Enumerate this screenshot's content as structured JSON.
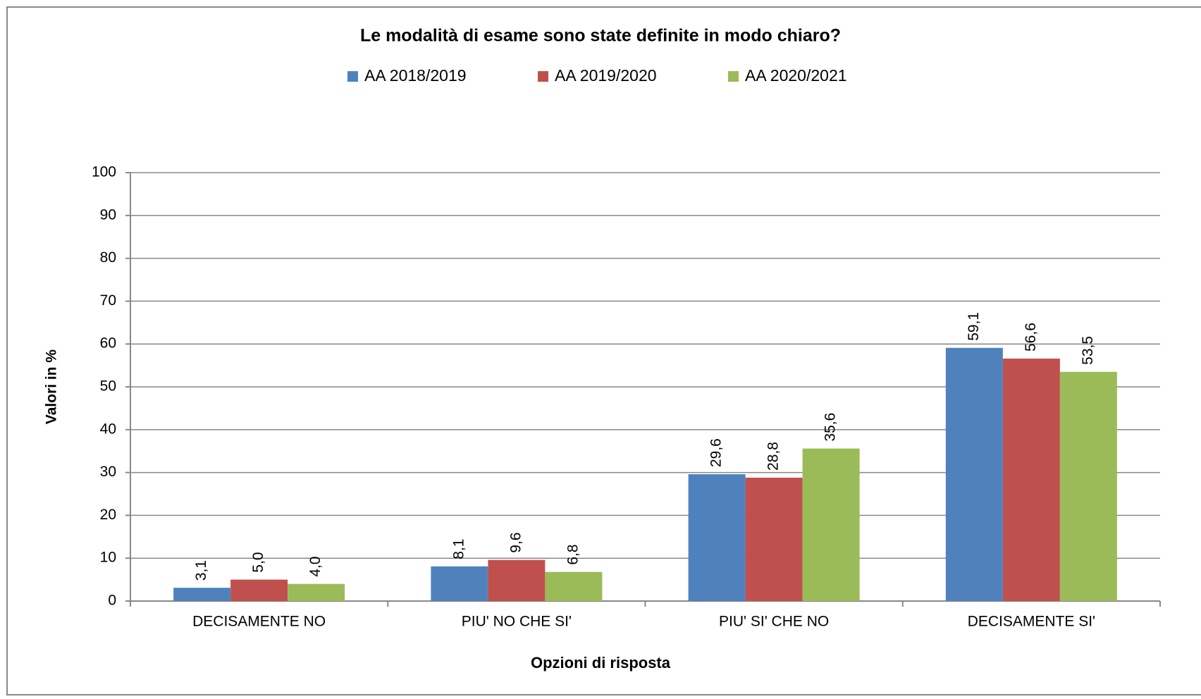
{
  "chart_data": {
    "type": "bar",
    "title": "Le modalità di esame sono state definite in modo chiaro?",
    "x_label": "Opzioni di risposta",
    "y_label": "Valori in %",
    "categories": [
      "DECISAMENTE NO",
      "PIU' NO CHE SI'",
      "PIU' SI' CHE NO",
      "DECISAMENTE SI'"
    ],
    "series": [
      {
        "name": "AA 2018/2019",
        "color": "#4f81bd",
        "values": [
          3.1,
          8.1,
          29.6,
          59.1
        ],
        "value_labels": [
          "3,1",
          "8,1",
          "29,6",
          "59,1"
        ]
      },
      {
        "name": "AA 2019/2020",
        "color": "#c0504d",
        "values": [
          5.0,
          9.6,
          28.8,
          56.6
        ],
        "value_labels": [
          "5,0",
          "9,6",
          "28,8",
          "56,6"
        ]
      },
      {
        "name": "AA 2020/2021",
        "color": "#9bbb59",
        "values": [
          4.0,
          6.8,
          35.6,
          53.5
        ],
        "value_labels": [
          "4,0",
          "6,8",
          "35,6",
          "53,5"
        ]
      }
    ],
    "ylim": [
      0,
      100
    ],
    "yticks": [
      0,
      10,
      20,
      30,
      40,
      50,
      60,
      70,
      80,
      90,
      100
    ],
    "grid": true,
    "legend": "top"
  }
}
